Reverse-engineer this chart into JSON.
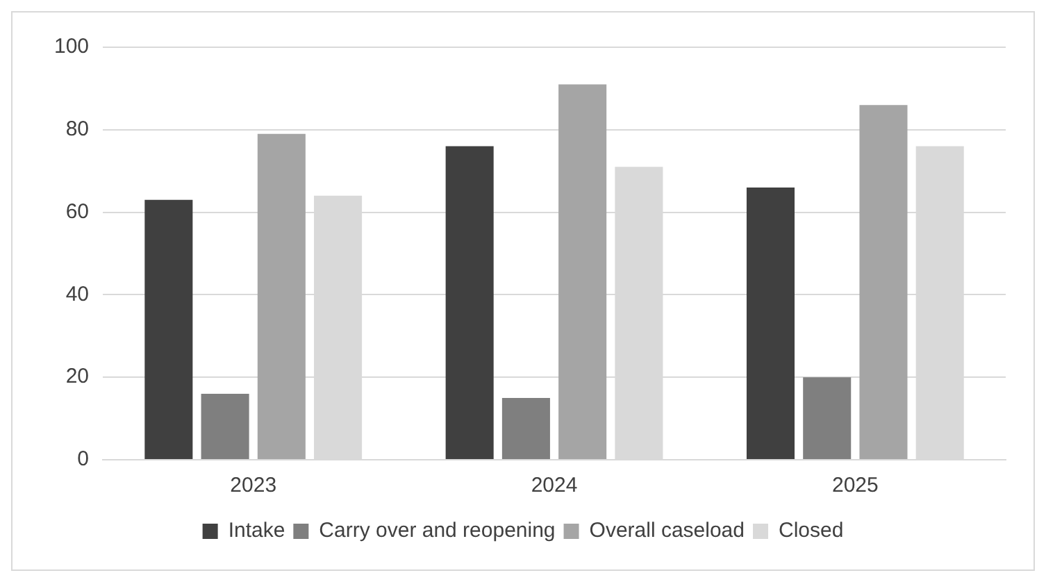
{
  "chart_data": {
    "type": "bar",
    "categories": [
      "2023",
      "2024",
      "2025"
    ],
    "series": [
      {
        "name": "Intake",
        "color": "#404040",
        "values": [
          63,
          76,
          66
        ]
      },
      {
        "name": "Carry over and reopening",
        "color": "#7f7f7f",
        "values": [
          16,
          15,
          20
        ]
      },
      {
        "name": "Overall caseload",
        "color": "#a5a5a5",
        "values": [
          79,
          91,
          86
        ]
      },
      {
        "name": "Closed",
        "color": "#d9d9d9",
        "values": [
          64,
          71,
          76
        ]
      }
    ],
    "ylim": [
      0,
      100
    ],
    "yticks": [
      0,
      20,
      40,
      60,
      80,
      100
    ],
    "grid": "y",
    "legend": "bottom"
  }
}
